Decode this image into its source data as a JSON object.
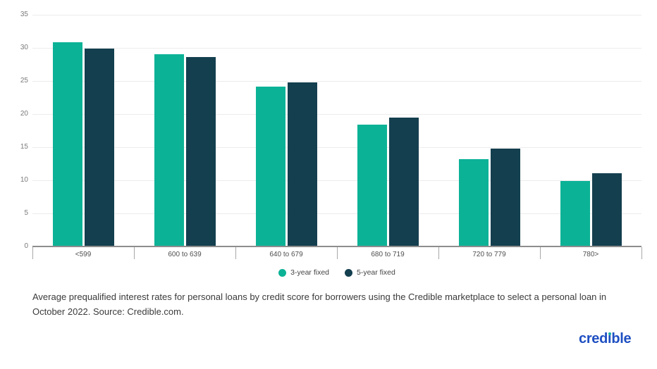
{
  "chart_data": {
    "type": "bar",
    "title": "",
    "xlabel": "",
    "ylabel": "",
    "categories": [
      "<599",
      "600 to 639",
      "640 to 679",
      "680 to 719",
      "720 to 779",
      "780>"
    ],
    "series": [
      {
        "name": "3-year fixed",
        "color": "#0cb296",
        "values": [
          30.8,
          29.0,
          24.2,
          18.4,
          13.2,
          9.9
        ]
      },
      {
        "name": "5-year fixed",
        "color": "#143f4f",
        "values": [
          29.9,
          28.6,
          24.8,
          19.5,
          14.8,
          11.1
        ]
      }
    ],
    "ylim": [
      0,
      35
    ],
    "yticks": [
      0,
      5,
      10,
      15,
      20,
      25,
      30,
      35
    ],
    "grid": true,
    "legend_position": "bottom-center"
  },
  "caption": {
    "text": "Average prequalified interest rates for personal loans by credit score for borrowers using the Credible marketplace to select a personal loan in October 2022. Source: Credible.com."
  },
  "branding": {
    "logo_full": "credible",
    "logo_text_pre": "cred",
    "logo_text_post": "ble",
    "logo_color": "#1e4fc2",
    "logo_dot_color": "#14b0a0"
  },
  "colors": {
    "background": "#ffffff",
    "gridline": "#ececec",
    "axis_line": "#8d8d8d",
    "tick": "#a8a8a8",
    "y_label": "#7a7a7a",
    "x_label": "#4e4e4e",
    "legend_text": "#444444",
    "caption_text": "#3a3a3a"
  }
}
